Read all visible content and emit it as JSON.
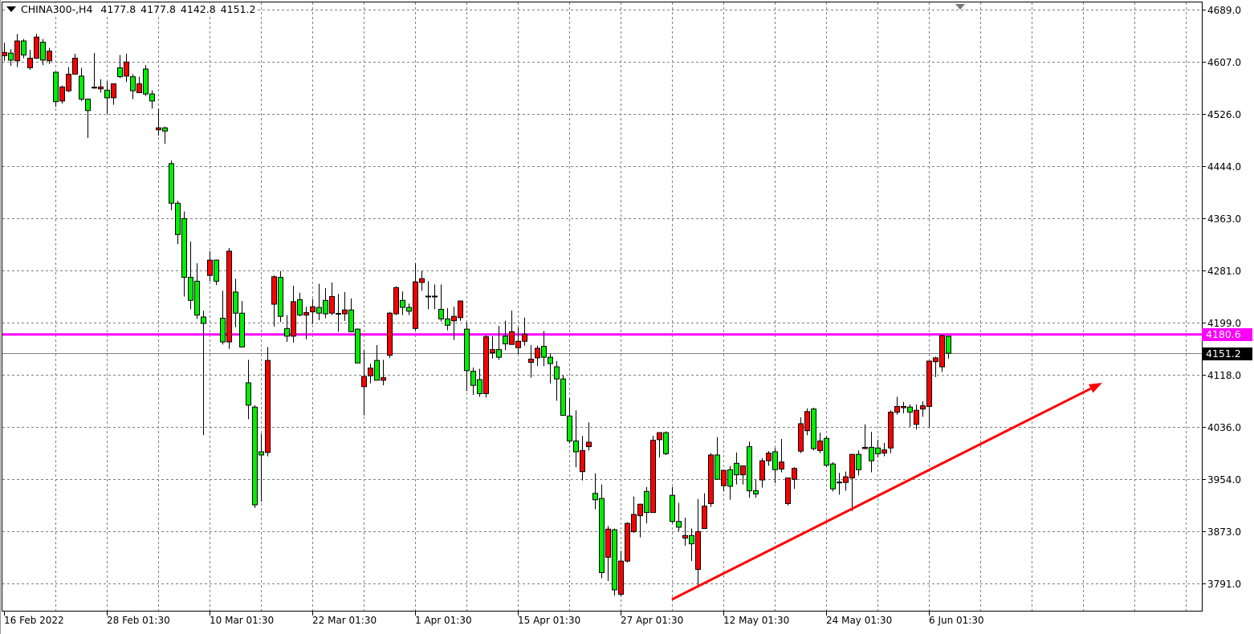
{
  "header": {
    "symbol": "CHINA300-,H4",
    "open": "4177.8",
    "high": "4177.8",
    "low": "4142.8",
    "close": "4151.2"
  },
  "colors": {
    "background": "#ffffff",
    "bull_candle": "#ff0000",
    "bear_candle": "#00ee00",
    "grid": "#808080",
    "horizontal_level": "#ff00ff",
    "trendline": "#ff0000",
    "bid_line": "#808080"
  },
  "price_axis": {
    "labels": [
      "4689.0",
      "4607.0",
      "4526.0",
      "4444.0",
      "4363.0",
      "4281.0",
      "4199.0",
      "4118.0",
      "4036.0",
      "3954.0",
      "3873.0",
      "3791.0"
    ]
  },
  "time_axis": {
    "labels": [
      "16 Feb 2022",
      "28 Feb 01:30",
      "10 Mar 01:30",
      "22 Mar 01:30",
      "1 Apr 01:30",
      "15 Apr 01:30",
      "27 Apr 01:30",
      "12 May 01:30",
      "24 May 01:30",
      "6 Jun 01:30"
    ]
  },
  "horizontal_level": {
    "price": 4180.6,
    "label": "4180.6"
  },
  "bid_line": {
    "price": 4151.2,
    "label": "4151.2"
  },
  "chart_data": {
    "type": "candlestick",
    "title": "CHINA300-,H4",
    "timeframe": "H4",
    "ylim": [
      3760,
      4700
    ],
    "grid": true,
    "candle_order": "open,high,low,close",
    "bullish_color": "red",
    "bearish_color": "green",
    "label_every_n_candles": 16,
    "candles": [
      [
        4617,
        4637,
        4609,
        4622
      ],
      [
        4621,
        4627,
        4601,
        4610
      ],
      [
        4609,
        4651,
        4599,
        4640
      ],
      [
        4640,
        4643,
        4613,
        4618
      ],
      [
        4598,
        4626,
        4595,
        4613
      ],
      [
        4613,
        4651,
        4612,
        4646
      ],
      [
        4638,
        4643,
        4602,
        4610
      ],
      [
        4609,
        4629,
        4604,
        4624
      ],
      [
        4591,
        4591,
        4537,
        4545
      ],
      [
        4546,
        4570,
        4542,
        4568
      ],
      [
        4562,
        4599,
        4560,
        4588
      ],
      [
        4588,
        4620,
        4588,
        4613
      ],
      [
        4585,
        4598,
        4546,
        4549
      ],
      [
        4549,
        4549,
        4488,
        4531
      ],
      [
        4567,
        4621,
        4565,
        4566
      ],
      [
        4565,
        4580,
        4559,
        4568
      ],
      [
        4563,
        4577,
        4526,
        4551
      ],
      [
        4551,
        4573,
        4540,
        4573
      ],
      [
        4598,
        4618,
        4582,
        4584
      ],
      [
        4585,
        4620,
        4576,
        4607
      ],
      [
        4584,
        4588,
        4549,
        4562
      ],
      [
        4559,
        4584,
        4559,
        4573
      ],
      [
        4596,
        4602,
        4554,
        4557
      ],
      [
        4557,
        4563,
        4534,
        4546
      ],
      [
        4501,
        4534,
        4492,
        4504
      ],
      [
        4504,
        4506,
        4479,
        4499
      ],
      [
        4448,
        4453,
        4375,
        4386
      ],
      [
        4386,
        4390,
        4322,
        4337
      ],
      [
        4362,
        4373,
        4240,
        4270
      ],
      [
        4270,
        4326,
        4220,
        4234
      ],
      [
        4264,
        4292,
        4205,
        4211
      ],
      [
        4208,
        4218,
        4023,
        4198
      ],
      [
        4273,
        4311,
        4264,
        4297
      ],
      [
        4297,
        4297,
        4258,
        4264
      ],
      [
        4206,
        4249,
        4165,
        4169
      ],
      [
        4169,
        4316,
        4158,
        4311
      ],
      [
        4247,
        4268,
        4192,
        4214
      ],
      [
        4214,
        4233,
        4161,
        4161
      ],
      [
        4105,
        4141,
        4048,
        4070
      ],
      [
        4067,
        4070,
        3909,
        3914
      ],
      [
        3997,
        4025,
        3919,
        3992
      ],
      [
        3996,
        4161,
        3990,
        4140
      ],
      [
        4228,
        4273,
        4193,
        4271
      ],
      [
        4270,
        4280,
        4200,
        4209
      ],
      [
        4190,
        4211,
        4169,
        4178
      ],
      [
        4178,
        4257,
        4168,
        4232
      ],
      [
        4235,
        4246,
        4209,
        4211
      ],
      [
        4211,
        4224,
        4173,
        4215
      ],
      [
        4216,
        4236,
        4197,
        4224
      ],
      [
        4223,
        4260,
        4203,
        4214
      ],
      [
        4234,
        4253,
        4206,
        4213
      ],
      [
        4214,
        4262,
        4211,
        4240
      ],
      [
        4213,
        4244,
        4185,
        4213
      ],
      [
        4213,
        4247,
        4202,
        4219
      ],
      [
        4219,
        4237,
        4185,
        4185
      ],
      [
        4189,
        4190,
        4136,
        4136
      ],
      [
        4099,
        4156,
        4054,
        4115
      ],
      [
        4116,
        4135,
        4104,
        4128
      ],
      [
        4140,
        4164,
        4109,
        4109
      ],
      [
        4109,
        4141,
        4101,
        4113
      ],
      [
        4148,
        4216,
        4144,
        4214
      ],
      [
        4213,
        4256,
        4211,
        4254
      ],
      [
        4234,
        4248,
        4211,
        4223
      ],
      [
        4223,
        4229,
        4211,
        4217
      ],
      [
        4190,
        4292,
        4187,
        4263
      ],
      [
        4262,
        4280,
        4249,
        4268
      ],
      [
        4240,
        4264,
        4220,
        4240
      ],
      [
        4240,
        4259,
        4220,
        4240
      ],
      [
        4220,
        4259,
        4201,
        4205
      ],
      [
        4205,
        4222,
        4187,
        4195
      ],
      [
        4202,
        4224,
        4172,
        4209
      ],
      [
        4207,
        4234,
        4202,
        4233
      ],
      [
        4189,
        4200,
        4092,
        4124
      ],
      [
        4123,
        4129,
        4086,
        4101
      ],
      [
        4110,
        4127,
        4083,
        4088
      ],
      [
        4088,
        4180,
        4082,
        4177
      ],
      [
        4152,
        4178,
        4143,
        4157
      ],
      [
        4157,
        4194,
        4141,
        4145
      ],
      [
        4178,
        4202,
        4156,
        4166
      ],
      [
        4165,
        4218,
        4165,
        4185
      ],
      [
        4160,
        4192,
        4150,
        4170
      ],
      [
        4170,
        4207,
        4163,
        4181
      ],
      [
        4137,
        4164,
        4113,
        4142
      ],
      [
        4144,
        4163,
        4131,
        4159
      ],
      [
        4162,
        4186,
        4131,
        4145
      ],
      [
        4145,
        4151,
        4104,
        4135
      ],
      [
        4130,
        4139,
        4077,
        4111
      ],
      [
        4111,
        4117,
        4054,
        4054
      ],
      [
        4053,
        4081,
        4010,
        4014
      ],
      [
        4014,
        4062,
        3973,
        3997
      ],
      [
        3966,
        4022,
        3952,
        3999
      ],
      [
        4005,
        4043,
        3999,
        4012
      ],
      [
        3932,
        3963,
        3907,
        3922
      ],
      [
        3924,
        3946,
        3799,
        3808
      ],
      [
        3832,
        3881,
        3795,
        3876
      ],
      [
        3875,
        3877,
        3772,
        3781
      ],
      [
        3774,
        3842,
        3771,
        3826
      ],
      [
        3826,
        3887,
        3824,
        3885
      ],
      [
        3872,
        3927,
        3870,
        3899
      ],
      [
        3897,
        3916,
        3863,
        3915
      ],
      [
        3935,
        3942,
        3885,
        3902
      ],
      [
        3902,
        4022,
        3902,
        4015
      ],
      [
        4016,
        4027,
        3988,
        4027
      ],
      [
        4027,
        4029,
        3992,
        3994
      ],
      [
        3929,
        3942,
        3885,
        3888
      ],
      [
        3888,
        3917,
        3873,
        3879
      ],
      [
        3862,
        3894,
        3850,
        3866
      ],
      [
        3866,
        3877,
        3826,
        3853
      ],
      [
        3813,
        3923,
        3786,
        3872
      ],
      [
        3877,
        3932,
        3877,
        3912
      ],
      [
        3916,
        3995,
        3911,
        3992
      ],
      [
        3992,
        4020,
        3954,
        3954
      ],
      [
        3944,
        3968,
        3935,
        3968
      ],
      [
        3969,
        3975,
        3922,
        3943
      ],
      [
        3979,
        3996,
        3946,
        3961
      ],
      [
        3961,
        3975,
        3946,
        3975
      ],
      [
        4005,
        4013,
        3925,
        3936
      ],
      [
        3936,
        3954,
        3925,
        3931
      ],
      [
        3953,
        3987,
        3941,
        3983
      ],
      [
        3983,
        3998,
        3975,
        3995
      ],
      [
        3997,
        4003,
        3948,
        3969
      ],
      [
        3970,
        4017,
        3965,
        3981
      ],
      [
        3916,
        3956,
        3913,
        3956
      ],
      [
        3954,
        3973,
        3939,
        3971
      ],
      [
        3998,
        4051,
        3995,
        4041
      ],
      [
        4030,
        4065,
        4023,
        4060
      ],
      [
        4064,
        4066,
        3999,
        4002
      ],
      [
        3999,
        4027,
        3995,
        4014
      ],
      [
        4018,
        4022,
        3973,
        3976
      ],
      [
        3978,
        3981,
        3935,
        3939
      ],
      [
        3949,
        3964,
        3930,
        3949
      ],
      [
        3949,
        3966,
        3936,
        3958
      ],
      [
        3956,
        3993,
        3904,
        3993
      ],
      [
        3993,
        3999,
        3960,
        3969
      ],
      [
        4002,
        4040,
        4001,
        4004
      ],
      [
        4004,
        4028,
        3965,
        3983
      ],
      [
        4003,
        4016,
        3988,
        3994
      ],
      [
        3995,
        4011,
        3990,
        4000
      ],
      [
        4003,
        4062,
        3995,
        4059
      ],
      [
        4059,
        4083,
        4055,
        4068
      ],
      [
        4066,
        4075,
        4057,
        4068
      ],
      [
        4067,
        4071,
        4036,
        4059
      ],
      [
        4040,
        4071,
        4032,
        4062
      ],
      [
        4064,
        4076,
        4052,
        4069
      ],
      [
        4068,
        4139,
        4035,
        4139
      ],
      [
        4138,
        4146,
        4114,
        4144
      ],
      [
        4130,
        4180,
        4122,
        4179
      ],
      [
        4177.8,
        4177.8,
        4142.8,
        4151.2
      ]
    ],
    "trendline": {
      "from": {
        "candle": 104,
        "price": 3766
      },
      "to": {
        "candle": 171,
        "price": 4105
      },
      "arrow": true
    }
  }
}
